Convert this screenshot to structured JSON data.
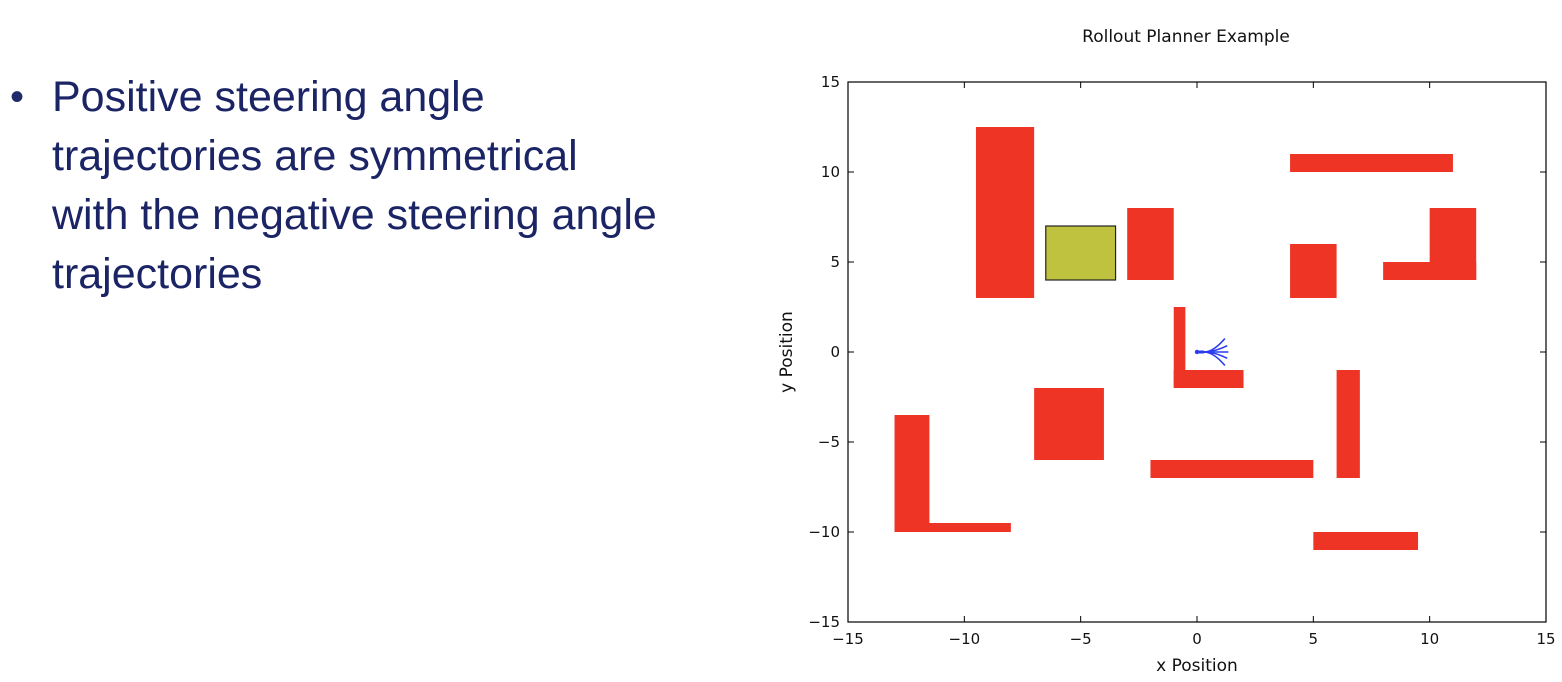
{
  "slide": {
    "bullet_symbol": "•",
    "bullet_text": "Positive steering angle trajectories are symmetrical with the negative steering angle trajectories"
  },
  "chart_data": {
    "type": "scatter",
    "title": "Rollout Planner Example",
    "xlabel": "x Position",
    "ylabel": "y Position",
    "xlim": [
      -15,
      15
    ],
    "ylim": [
      -15,
      15
    ],
    "xticks": [
      -15,
      -10,
      -5,
      0,
      5,
      10,
      15
    ],
    "yticks": [
      -15,
      -10,
      -5,
      0,
      5,
      10,
      15
    ],
    "xtick_labels": [
      "−15",
      "−10",
      "−5",
      "0",
      "5",
      "10",
      "15"
    ],
    "ytick_labels": [
      "−15",
      "−10",
      "−5",
      "0",
      "5",
      "10",
      "15"
    ],
    "grid": false,
    "colors": {
      "obstacle": "#ee3424",
      "goal": "#bfc23e",
      "goal_edge": "#222222",
      "trajectory": "#2b3cf0"
    },
    "obstacles": [
      {
        "x0": -9.5,
        "y0": 3,
        "x1": -7,
        "y1": 12.5
      },
      {
        "x0": -3,
        "y0": 4,
        "x1": -1,
        "y1": 8
      },
      {
        "x0": 4,
        "y0": 10,
        "x1": 11,
        "y1": 11
      },
      {
        "x0": 4,
        "y0": 3,
        "x1": 6,
        "y1": 6
      },
      {
        "x0": 8,
        "y0": 4,
        "x1": 12,
        "y1": 5
      },
      {
        "x0": 10,
        "y0": 4,
        "x1": 12,
        "y1": 8
      },
      {
        "x0": -1,
        "y0": -2,
        "x1": -0.5,
        "y1": 2.5
      },
      {
        "x0": -1,
        "y0": -2,
        "x1": 2,
        "y1": -1
      },
      {
        "x0": -7,
        "y0": -6,
        "x1": -4,
        "y1": -2
      },
      {
        "x0": -13,
        "y0": -10,
        "x1": -11.5,
        "y1": -3.5
      },
      {
        "x0": -13,
        "y0": -10,
        "x1": -8,
        "y1": -9.5
      },
      {
        "x0": -2,
        "y0": -7,
        "x1": 5,
        "y1": -6
      },
      {
        "x0": 6,
        "y0": -7,
        "x1": 7,
        "y1": -1
      },
      {
        "x0": 5,
        "y0": -11,
        "x1": 9.5,
        "y1": -10
      }
    ],
    "goal_region": {
      "x0": -6.5,
      "y0": 4,
      "x1": -3.5,
      "y1": 7
    },
    "start": {
      "x": 0,
      "y": 0
    },
    "trajectories": [
      {
        "end_x": 1.2,
        "end_y": 0.75
      },
      {
        "end_x": 1.3,
        "end_y": 0.35
      },
      {
        "end_x": 1.35,
        "end_y": 0
      },
      {
        "end_x": 1.3,
        "end_y": -0.35
      },
      {
        "end_x": 1.2,
        "end_y": -0.75
      }
    ]
  }
}
